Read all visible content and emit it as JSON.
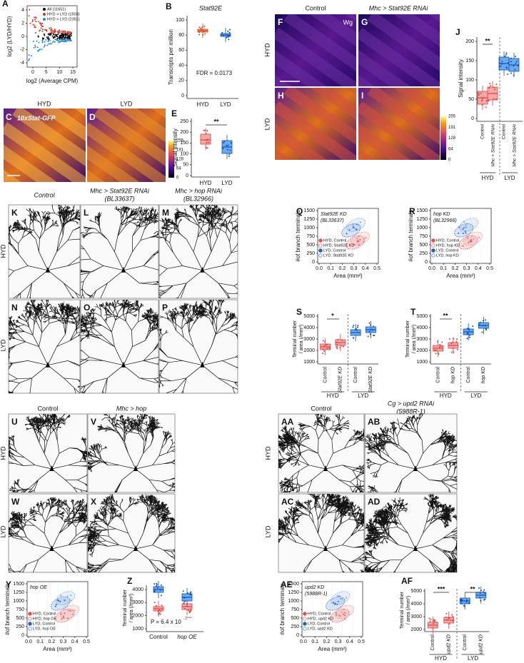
{
  "panels": {
    "A": {
      "label": "A",
      "legend": [
        "All (11651)",
        "HYD > LYD (1503)",
        "HYD < LYD (2351)"
      ],
      "y_label": "log2 (LYD/HYD)",
      "x_label": "log2 (Average CPM)",
      "yticks": [
        "4",
        "2",
        "0",
        "-2",
        "-4"
      ],
      "xticks": [
        "0",
        "5",
        "10",
        "15"
      ]
    },
    "B": {
      "label": "B",
      "title": "Stat92E",
      "y_label": "Transcripts per million",
      "yticks": [
        "100",
        "80",
        "60",
        "40",
        "20",
        "0"
      ],
      "groups": [
        "HYD",
        "LYD"
      ],
      "note": "FDR = 0.0173"
    },
    "C": {
      "label": "C",
      "title": "HYD",
      "note": "10xStat-GFP"
    },
    "D": {
      "label": "D",
      "title": "LYD"
    },
    "colorbar1": [
      "255",
      "191",
      "128",
      "64",
      "0"
    ],
    "E": {
      "label": "E",
      "y_label": "Signal intensity",
      "yticks": [
        "250",
        "200",
        "150",
        "100",
        "50",
        "0"
      ],
      "groups": [
        "HYD",
        "LYD"
      ],
      "sig": "**"
    },
    "FI": {
      "labels": [
        "F",
        "G",
        "H",
        "I"
      ],
      "columns": [
        "Control",
        "Mhc > Stat92E RNAi"
      ],
      "rows": [
        "HYD",
        "LYD"
      ],
      "note": "Wg"
    },
    "colorbar2": [
      "255",
      "191",
      "128",
      "64",
      "0"
    ],
    "J": {
      "label": "J",
      "y_label": "Signal intensity",
      "yticks": [
        "200",
        "150",
        "100",
        "50",
        "0"
      ],
      "groups": [
        "Control",
        "Mhc > Stat92E RNAi",
        "Control",
        "Mhc > Stat92E RNAi"
      ],
      "conditions": [
        "HYD",
        "LYD"
      ],
      "sig": "**"
    },
    "KP": {
      "labels": [
        "K",
        "L",
        "M",
        "N",
        "O",
        "P"
      ],
      "columns": [
        [
          "Control"
        ],
        [
          "Mhc > Stat92E RNAi",
          "(BL33637)"
        ],
        [
          "Mhc > hop RNAi",
          "(BL32966)"
        ]
      ],
      "rows": [
        "HYD",
        "LYD"
      ]
    },
    "Q": {
      "label": "Q",
      "note": [
        "Stat92E KD",
        "(BL33637)"
      ],
      "legend": [
        "HYD, Control",
        "HYD, Stat92E KD",
        "LYD, Control",
        "LYD, Stat92E KD"
      ],
      "y_label": "#of branch terminals",
      "x_label": "Area (mm²)",
      "yticks": [
        "1500",
        "1250",
        "1000",
        "750",
        "500",
        "250",
        "0"
      ],
      "xticks": [
        "0.0",
        "0.1",
        "0.2",
        "0.3",
        "0.4",
        "0.5"
      ]
    },
    "R": {
      "label": "R",
      "note": [
        "hop KD",
        "(BL32966)"
      ],
      "legend": [
        "HYD, Control",
        "HYD, hop KD",
        "LYD, Control",
        "LYD, hop KD"
      ],
      "y_label": "#of branch terminals",
      "x_label": "Area (mm²)",
      "yticks": [
        "1500",
        "1250",
        "1000",
        "750",
        "500",
        "250",
        "0"
      ],
      "xticks": [
        "0.0",
        "0.1",
        "0.2",
        "0.3",
        "0.4",
        "0.5"
      ]
    },
    "S": {
      "label": "S",
      "y_label": [
        "Terminal number",
        "/ area (/mm²)"
      ],
      "yticks": [
        "5000",
        "4000",
        "3000",
        "2000",
        "1000"
      ],
      "groups": [
        "Control",
        "Stat92E KD",
        "Control",
        "Stat92E KD"
      ],
      "conditions": [
        "HYD",
        "LYD"
      ],
      "sig": "*"
    },
    "T": {
      "label": "T",
      "y_label": [
        "Terminal number",
        "/ area (/mm²)"
      ],
      "yticks": [
        "5000",
        "4000",
        "3000",
        "2000",
        "1000"
      ],
      "groups": [
        "Control",
        "hop KD",
        "Control",
        "hop KD"
      ],
      "conditions": [
        "HYD",
        "LYD"
      ],
      "sig": "**"
    },
    "UX": {
      "labels": [
        "U",
        "V",
        "W",
        "X"
      ],
      "columns": [
        "Control",
        "Mhc > hop"
      ],
      "rows": [
        "HYD",
        "LYD"
      ]
    },
    "AAAD": {
      "labels": [
        "AA",
        "AB",
        "AC",
        "AD"
      ],
      "columns": [
        [
          "Control"
        ],
        [
          "Cg > upd2 RNAi",
          "(5988R-1)"
        ]
      ],
      "rows": [
        "HYD",
        "LYD"
      ]
    },
    "Y": {
      "label": "Y",
      "note": [
        "hop OE"
      ],
      "legend": [
        "HYD, Control",
        "HYD, hop OE",
        "LYD, Control",
        "LYD, hop OE"
      ],
      "y_label": "#of branch terminals",
      "x_label": "Area (mm²)",
      "yticks": [
        "1500",
        "1250",
        "1000",
        "750",
        "500",
        "250",
        "0"
      ],
      "xticks": [
        "0.0",
        "0.1",
        "0.2",
        "0.3",
        "0.4",
        "0.5"
      ]
    },
    "Z": {
      "label": "Z",
      "y_label": [
        "Terminal number",
        "/ area (/mm²)"
      ],
      "yticks": [
        "4000",
        "3000",
        "2000",
        "1000"
      ],
      "groups": [
        "Control",
        "hop OE"
      ],
      "note": "P = 6.4 x 10",
      "exponent": "-7",
      "stars": "***"
    },
    "AE": {
      "label": "AE",
      "note": [
        "upd2 KD",
        "(5988R-1)"
      ],
      "legend": [
        "HYD, Control",
        "HYD, upd2 KD",
        "LYD, Control",
        "LYD, upd2 KD"
      ],
      "y_label": "#of branch terminals",
      "x_label": "Area (mm²)",
      "yticks": [
        "1500",
        "1250",
        "1000",
        "750",
        "500",
        "250",
        "0"
      ],
      "xticks": [
        "0.0",
        "0.1",
        "0.2",
        "0.3",
        "0.4",
        "0.5"
      ]
    },
    "AF": {
      "label": "AF",
      "y_label": [
        "Terminal number",
        "/ area (/mm²)"
      ],
      "yticks": [
        "5000",
        "4000",
        "3000",
        "2000"
      ],
      "groups": [
        "Control",
        "upd2 KD",
        "Control",
        "upd2 KD"
      ],
      "conditions": [
        "HYD",
        "LYD"
      ],
      "sig": [
        "***",
        "**"
      ]
    }
  }
}
